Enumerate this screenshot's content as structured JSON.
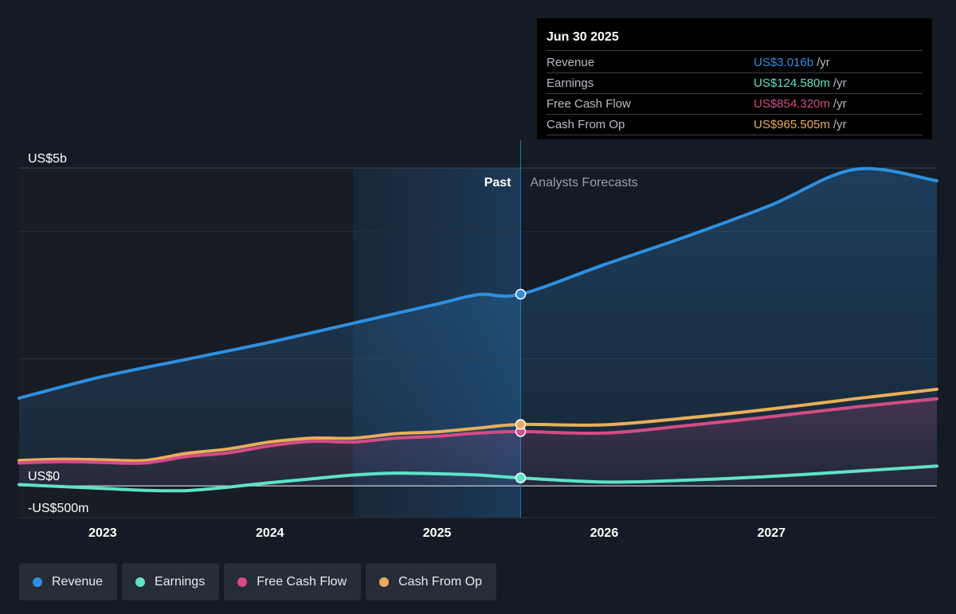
{
  "colors": {
    "revenue": "#2f8fdf",
    "earnings": "#5fe3c7",
    "free_cash_flow": "#d54c86",
    "cash_from_op": "#e9ae5a",
    "background": "#151b24",
    "past_shade": "#181c24"
  },
  "tooltip": {
    "date": "Jun 30 2025",
    "rows": [
      {
        "label": "Revenue",
        "value": "US$3.016b",
        "unit": "/yr",
        "color": "#2f8fdf"
      },
      {
        "label": "Earnings",
        "value": "US$124.580m",
        "unit": "/yr",
        "color": "#5fe3c7"
      },
      {
        "label": "Free Cash Flow",
        "value": "US$854.320m",
        "unit": "/yr",
        "color": "#d54c86"
      },
      {
        "label": "Cash From Op",
        "value": "US$965.505m",
        "unit": "/yr",
        "color": "#e9ae5a"
      }
    ]
  },
  "legend": [
    {
      "label": "Revenue",
      "color": "#2f8fdf"
    },
    {
      "label": "Earnings",
      "color": "#5fe3c7"
    },
    {
      "label": "Free Cash Flow",
      "color": "#d54c86"
    },
    {
      "label": "Cash From Op",
      "color": "#e9ae5a"
    }
  ],
  "chart_data": {
    "type": "line",
    "title": "",
    "y_axis_labels": [
      "US$5b",
      "US$0",
      "-US$500m"
    ],
    "ylim": [
      -500,
      5000
    ],
    "y_unit": "US$ millions",
    "x_ticks": [
      "2023",
      "2024",
      "2025",
      "2026",
      "2027"
    ],
    "xlim": [
      2022.5,
      2027.99
    ],
    "divider_x": 2025.5,
    "highlight_start_x": 2024.5,
    "past_label": "Past",
    "forecast_label": "Analysts Forecasts",
    "grid": true,
    "legend_position": "bottom",
    "series": [
      {
        "name": "Revenue",
        "x": [
          2022.5,
          2023.0,
          2023.5,
          2024.0,
          2024.5,
          2025.0,
          2025.25,
          2025.5,
          2026.0,
          2026.5,
          2027.0,
          2027.5,
          2027.99
        ],
        "values": [
          1380,
          1720,
          1990,
          2260,
          2560,
          2860,
          3010,
          3016,
          3480,
          3930,
          4420,
          4980,
          4800
        ]
      },
      {
        "name": "Earnings",
        "x": [
          2022.5,
          2023.0,
          2023.25,
          2023.5,
          2023.75,
          2024.0,
          2024.25,
          2024.5,
          2024.75,
          2025.0,
          2025.25,
          2025.5,
          2026.0,
          2026.5,
          2027.0,
          2027.5,
          2027.99
        ],
        "values": [
          20,
          -40,
          -70,
          -75,
          -20,
          50,
          110,
          170,
          200,
          190,
          170,
          125,
          60,
          90,
          150,
          230,
          310
        ]
      },
      {
        "name": "Free Cash Flow",
        "x": [
          2022.5,
          2022.75,
          2023.0,
          2023.25,
          2023.5,
          2023.75,
          2024.0,
          2024.25,
          2024.5,
          2024.75,
          2025.0,
          2025.25,
          2025.5,
          2026.0,
          2026.5,
          2027.0,
          2027.5,
          2027.99
        ],
        "values": [
          360,
          380,
          370,
          360,
          460,
          520,
          630,
          700,
          690,
          750,
          780,
          830,
          854,
          830,
          950,
          1090,
          1240,
          1370
        ]
      },
      {
        "name": "Cash From Op",
        "x": [
          2022.5,
          2022.75,
          2023.0,
          2023.25,
          2023.5,
          2023.75,
          2024.0,
          2024.25,
          2024.5,
          2024.75,
          2025.0,
          2025.25,
          2025.5,
          2026.0,
          2026.5,
          2027.0,
          2027.5,
          2027.99
        ],
        "values": [
          400,
          420,
          410,
          400,
          510,
          580,
          690,
          750,
          750,
          820,
          850,
          910,
          966,
          960,
          1070,
          1210,
          1370,
          1520
        ]
      }
    ]
  }
}
